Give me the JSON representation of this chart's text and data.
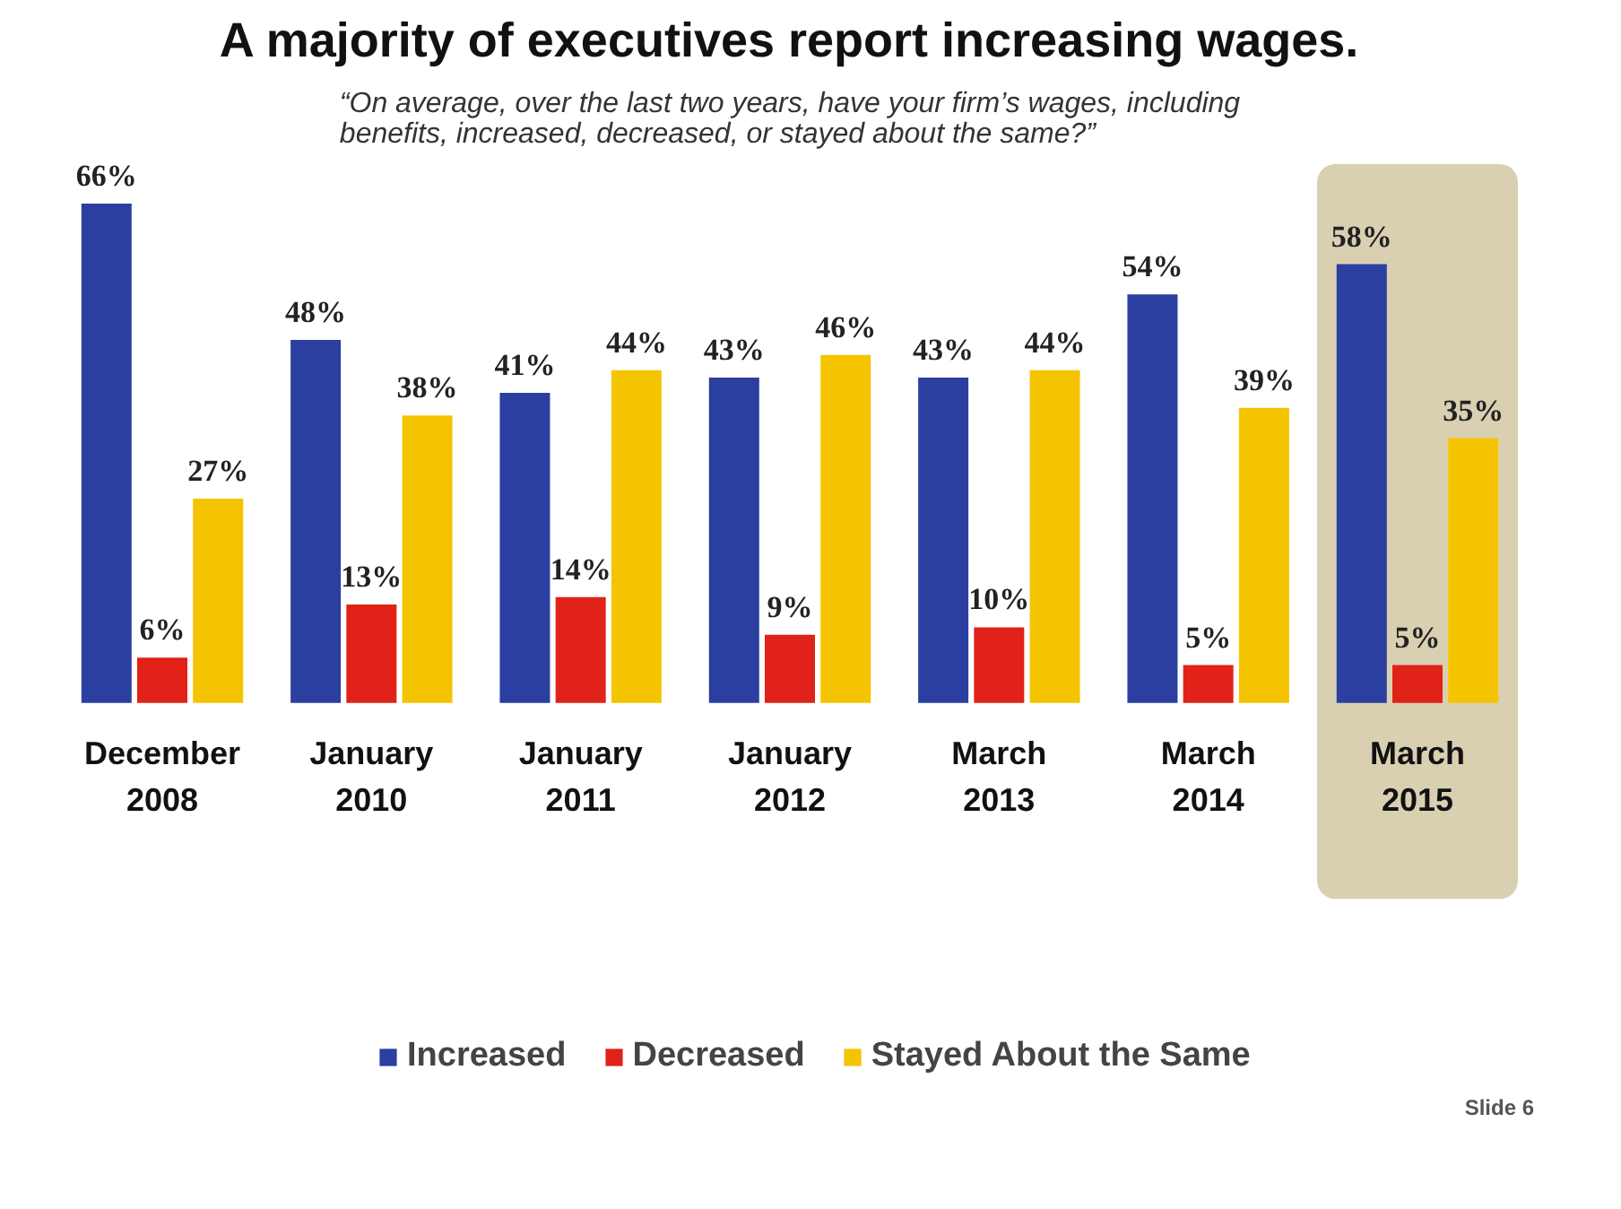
{
  "chart_data": {
    "type": "bar",
    "title": "A majority of executives report increasing wages.",
    "subtitle": "“On average, over the last two years, have your firm’s wages, including benefits, increased, decreased, or stayed about the same?”",
    "categories": [
      "December 2008",
      "January 2010",
      "January 2011",
      "January 2012",
      "March 2013",
      "March 2014",
      "March 2015"
    ],
    "series": [
      {
        "name": "Increased",
        "color": "#2b3fa0",
        "values": [
          66,
          48,
          41,
          43,
          43,
          54,
          58
        ],
        "value_labels": [
          "66%",
          "48%",
          "41%",
          "43%",
          "43%",
          "54%",
          "58%"
        ]
      },
      {
        "name": "Decreased",
        "color": "#e02219",
        "values": [
          6,
          13,
          14,
          9,
          10,
          5,
          5
        ],
        "value_labels": [
          "6%",
          "13%",
          "14%",
          "9%",
          "10%",
          "5%",
          "5%"
        ]
      },
      {
        "name": "Stayed About the Same",
        "color": "#f5c400",
        "values": [
          27,
          38,
          44,
          46,
          44,
          39,
          35
        ],
        "value_labels": [
          "27%",
          "38%",
          "44%",
          "46%",
          "44%",
          "39%",
          "35%"
        ]
      }
    ],
    "bands": [
      {
        "axis": "x",
        "from": "March 2015",
        "to": "March 2015",
        "color": "#d9d0b2"
      }
    ],
    "legend": "bottom",
    "grid": false,
    "tick_labels": "x",
    "annotations": [
      "Slide 6"
    ]
  }
}
